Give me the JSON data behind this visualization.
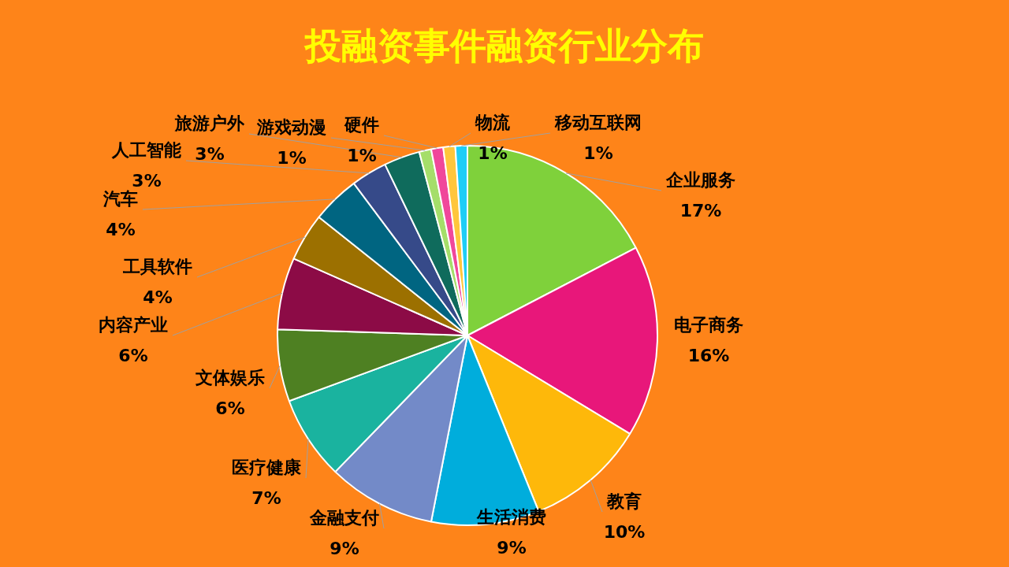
{
  "chart_data": {
    "type": "pie",
    "title": "投融资事件融资行业分布",
    "categories": [
      "企业服务",
      "电子商务",
      "教育",
      "生活消费",
      "金融支付",
      "医疗健康",
      "文体娱乐",
      "内容产业",
      "工具软件",
      "汽车",
      "人工智能",
      "旅游户外",
      "游戏动漫",
      "硬件",
      "物流",
      "移动互联网"
    ],
    "values": [
      17,
      16,
      10,
      9,
      9,
      7,
      6,
      6,
      4,
      4,
      3,
      3,
      1,
      1,
      1,
      1
    ],
    "value_labels": [
      "17%",
      "16%",
      "10%",
      "9%",
      "9%",
      "7%",
      "6%",
      "6%",
      "4%",
      "4%",
      "3%",
      "3%",
      "1%",
      "1%",
      "1%",
      "1%"
    ],
    "colors": [
      "#7fd13b",
      "#e8177a",
      "#feb80a",
      "#00addc",
      "#738ac8",
      "#1ab39f",
      "#4e8022",
      "#8c0b46",
      "#9c7000",
      "#006581",
      "#364a89",
      "#0f6b5c",
      "#a5de6a",
      "#f0479b",
      "#ffc63c",
      "#1ecdf6"
    ],
    "legend": false
  }
}
